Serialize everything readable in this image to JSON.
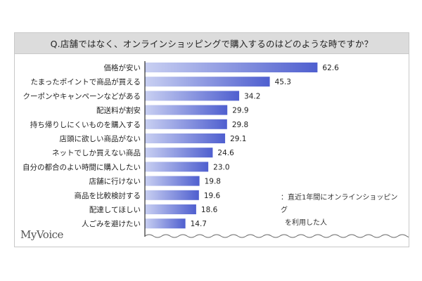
{
  "title": "Q.店舗ではなく、オンラインショッピングで購入するのはどのような時ですか？",
  "note": {
    "line1": "：直近1年間にオンラインショッピング",
    "line2": "を利用した人"
  },
  "brand": "MyVoice",
  "colors": {
    "bar_light": "#c9d0f2",
    "bar_dark": "#4f5fcf",
    "title_bg": "#dcdcdc",
    "axis": "#000000"
  },
  "chart_data": {
    "type": "bar",
    "orientation": "horizontal",
    "categories": [
      "価格が安い",
      "たまったポイントで商品が買える",
      "クーポンやキャンペーンなどがある",
      "配送料が割安",
      "持ち帰りしにくいものを購入する",
      "店頭に欲しい商品がない",
      "ネットでしか買えない商品",
      "自分の都合のよい時間に購入したい",
      "店舗に行けない",
      "商品を比較検討する",
      "配達してほしい",
      "人ごみを避けたい"
    ],
    "values": [
      62.6,
      45.3,
      34.2,
      29.9,
      29.8,
      29.1,
      24.6,
      23.0,
      19.8,
      19.6,
      18.6,
      14.7
    ],
    "value_labels": [
      "62.6",
      "45.3",
      "34.2",
      "29.9",
      "29.8",
      "29.1",
      "24.6",
      "23.0",
      "19.8",
      "19.6",
      "18.6",
      "14.7"
    ],
    "xlim": [
      0,
      100
    ],
    "grid": false
  }
}
